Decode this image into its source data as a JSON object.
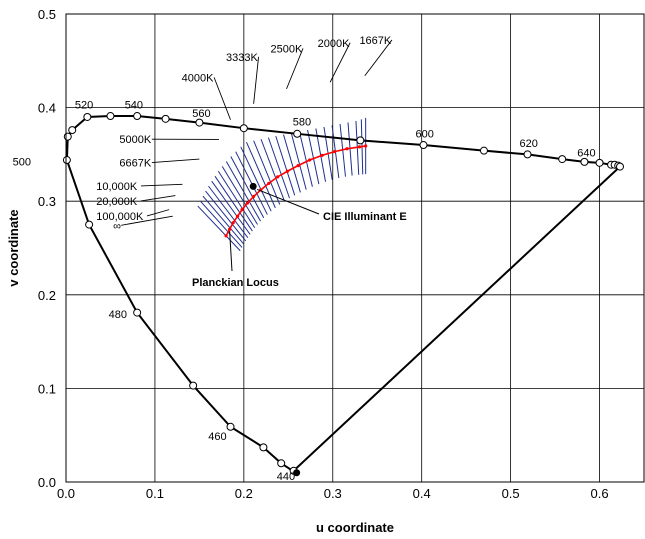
{
  "chart_data": {
    "type": "scatter",
    "xlabel": "u coordinate",
    "ylabel": "v coordinate",
    "xlim": [
      0,
      0.65
    ],
    "ylim": [
      0,
      0.5
    ],
    "xticks": [
      0.0,
      0.1,
      0.2,
      0.3,
      0.4,
      0.5,
      0.6
    ],
    "yticks": [
      0.0,
      0.1,
      0.2,
      0.3,
      0.4,
      0.5
    ],
    "grid": true,
    "colors": {
      "locus": "#000000",
      "isotherms": "#1f2f8f",
      "planckian": "#ff0000",
      "marker_fill": "#ffffff",
      "point": "#000000"
    },
    "spectral_locus": [
      [
        0.256,
        0.012
      ],
      [
        0.253,
        0.013
      ],
      [
        0.25,
        0.015
      ],
      [
        0.242,
        0.02
      ],
      [
        0.222,
        0.037
      ],
      [
        0.185,
        0.059
      ],
      [
        0.143,
        0.103
      ],
      [
        0.08,
        0.181
      ],
      [
        0.026,
        0.275
      ],
      [
        0.001,
        0.344
      ],
      [
        0.002,
        0.369
      ],
      [
        0.007,
        0.376
      ],
      [
        0.024,
        0.39
      ],
      [
        0.05,
        0.391
      ],
      [
        0.08,
        0.391
      ],
      [
        0.112,
        0.388
      ],
      [
        0.15,
        0.384
      ],
      [
        0.2,
        0.378
      ],
      [
        0.26,
        0.372
      ],
      [
        0.331,
        0.365
      ],
      [
        0.402,
        0.36
      ],
      [
        0.47,
        0.354
      ],
      [
        0.519,
        0.35
      ],
      [
        0.558,
        0.345
      ],
      [
        0.583,
        0.342
      ],
      [
        0.6,
        0.341
      ],
      [
        0.613,
        0.339
      ],
      [
        0.617,
        0.339
      ],
      [
        0.621,
        0.338
      ],
      [
        0.623,
        0.337
      ]
    ],
    "wavelength_labels": [
      {
        "text": "440",
        "u": 0.237,
        "v": 0.002
      },
      {
        "text": "460",
        "u": 0.16,
        "v": 0.045
      },
      {
        "text": "480",
        "u": 0.048,
        "v": 0.175
      },
      {
        "text": "500",
        "u": -0.06,
        "v": 0.338
      },
      {
        "text": "520",
        "u": 0.01,
        "v": 0.399
      },
      {
        "text": "540",
        "u": 0.066,
        "v": 0.399
      },
      {
        "text": "560",
        "u": 0.142,
        "v": 0.39
      },
      {
        "text": "580",
        "u": 0.255,
        "v": 0.381
      },
      {
        "text": "600",
        "u": 0.393,
        "v": 0.368
      },
      {
        "text": "620",
        "u": 0.51,
        "v": 0.358
      },
      {
        "text": "640",
        "u": 0.575,
        "v": 0.348
      }
    ],
    "planckian_locus": [
      [
        0.18,
        0.263
      ],
      [
        0.184,
        0.27
      ],
      [
        0.188,
        0.277
      ],
      [
        0.193,
        0.284
      ],
      [
        0.198,
        0.291
      ],
      [
        0.204,
        0.298
      ],
      [
        0.211,
        0.305
      ],
      [
        0.219,
        0.312
      ],
      [
        0.228,
        0.319
      ],
      [
        0.238,
        0.326
      ],
      [
        0.249,
        0.332
      ],
      [
        0.261,
        0.338
      ],
      [
        0.274,
        0.344
      ],
      [
        0.288,
        0.349
      ],
      [
        0.302,
        0.353
      ],
      [
        0.316,
        0.356
      ],
      [
        0.33,
        0.358
      ],
      [
        0.337,
        0.359
      ]
    ],
    "isotherm_labels": [
      {
        "text": "1667K",
        "u": 0.33,
        "v": 0.468
      },
      {
        "text": "2000K",
        "u": 0.283,
        "v": 0.465
      },
      {
        "text": "2500K",
        "u": 0.23,
        "v": 0.459
      },
      {
        "text": "3333K",
        "u": 0.18,
        "v": 0.45
      },
      {
        "text": "4000K",
        "u": 0.13,
        "v": 0.428
      },
      {
        "text": "5000K",
        "u": 0.06,
        "v": 0.362
      },
      {
        "text": "6667K",
        "u": 0.06,
        "v": 0.337
      },
      {
        "text": "10,000K",
        "u": 0.034,
        "v": 0.312
      },
      {
        "text": "20,000K",
        "u": 0.034,
        "v": 0.296
      },
      {
        "text": "100,000K",
        "u": 0.034,
        "v": 0.28
      },
      {
        "text": "∞",
        "u": 0.053,
        "v": 0.27
      }
    ],
    "annotations": {
      "illuminant_e": {
        "label": "CIE Illuminant E",
        "u": 0.2105,
        "v": 0.3158
      },
      "planckian_locus": {
        "label": "Planckian Locus"
      }
    }
  }
}
